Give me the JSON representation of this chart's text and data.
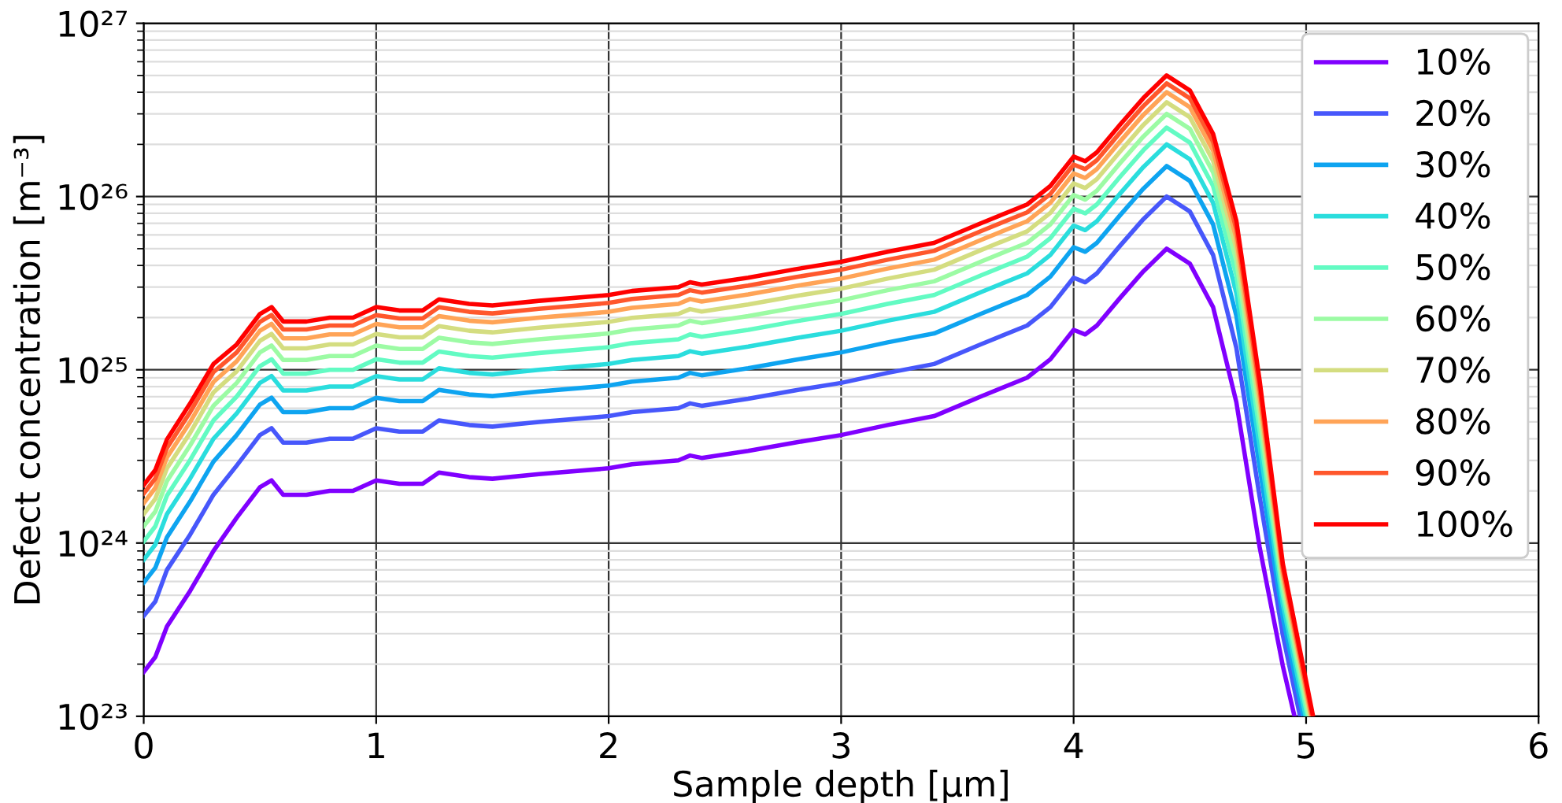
{
  "chart_data": {
    "type": "line",
    "xlabel": "Sample depth [μm]",
    "ylabel": "Defect concentration [m⁻³]",
    "log": "y",
    "grid": true,
    "legend": "top right",
    "line_style": "solid",
    "marker": "none",
    "xlim": [
      0,
      6
    ],
    "xticks": [
      0,
      1,
      2,
      3,
      4,
      5,
      6
    ],
    "ylim": [
      1e+23,
      1e+27
    ],
    "yticks": [
      {
        "value": 1e+23,
        "label": "10²³"
      },
      {
        "value": 1e+24,
        "label": "10²⁴"
      },
      {
        "value": 1e+25,
        "label": "10²⁵"
      },
      {
        "value": 1e+26,
        "label": "10²⁶"
      },
      {
        "value": 1e+27,
        "label": "10²⁷"
      }
    ],
    "series": [
      {
        "name": "10%",
        "color": "#8000ff",
        "x": [
          0,
          0.05,
          0.1,
          0.2,
          0.3,
          0.4,
          0.5,
          0.55,
          0.6,
          0.7,
          0.8,
          0.9,
          1.0,
          1.1,
          1.2,
          1.27,
          1.4,
          1.5,
          1.7,
          2.0,
          2.1,
          2.3,
          2.35,
          2.4,
          2.6,
          2.8,
          3.0,
          3.2,
          3.4,
          3.6,
          3.8,
          3.9,
          4.0,
          4.05,
          4.1,
          4.2,
          4.3,
          4.4,
          4.5,
          4.6,
          4.7,
          4.8,
          4.9,
          4.95
        ],
        "values": [
          1.8e+23,
          2.2e+23,
          3.3e+23,
          5.3e+23,
          9e+23,
          1.4e+24,
          2.1e+24,
          2.3e+24,
          1.9e+24,
          1.9e+24,
          2e+24,
          2e+24,
          2.3e+24,
          2.2e+24,
          2.2e+24,
          2.55e+24,
          2.4e+24,
          2.35e+24,
          2.5e+24,
          2.7e+24,
          2.85e+24,
          3e+24,
          3.2e+24,
          3.1e+24,
          3.4e+24,
          3.8e+24,
          4.2e+24,
          4.8e+24,
          5.4e+24,
          7e+24,
          9e+24,
          1.15e+25,
          1.7e+25,
          1.6e+25,
          1.8e+25,
          2.6e+25,
          3.7e+25,
          5e+25,
          4.1e+25,
          2.3e+25,
          6.5e+24,
          9.5e+23,
          1.95e+23,
          1e+23
        ]
      },
      {
        "name": "20%",
        "color": "#4757fb",
        "x": [
          0,
          0.05,
          0.1,
          0.2,
          0.3,
          0.4,
          0.5,
          0.55,
          0.6,
          0.7,
          0.8,
          0.9,
          1.0,
          1.1,
          1.2,
          1.27,
          1.4,
          1.5,
          1.7,
          2.0,
          2.1,
          2.3,
          2.35,
          2.4,
          2.6,
          2.8,
          3.0,
          3.2,
          3.4,
          3.6,
          3.8,
          3.9,
          4.0,
          4.05,
          4.1,
          4.2,
          4.3,
          4.4,
          4.5,
          4.6,
          4.7,
          4.8,
          4.9,
          4.974
        ],
        "values": [
          3.8e+23,
          4.6e+23,
          7e+23,
          1.12e+24,
          1.9e+24,
          2.8e+24,
          4.2e+24,
          4.6e+24,
          3.8e+24,
          3.8e+24,
          4e+24,
          4e+24,
          4.6e+24,
          4.4e+24,
          4.4e+24,
          5.1e+24,
          4.8e+24,
          4.7e+24,
          5e+24,
          5.4e+24,
          5.7e+24,
          6e+24,
          6.4e+24,
          6.2e+24,
          6.8e+24,
          7.6e+24,
          8.4e+24,
          9.6e+24,
          1.08e+25,
          1.4e+25,
          1.8e+25,
          2.3e+25,
          3.4e+25,
          3.2e+25,
          3.6e+25,
          5.2e+25,
          7.4e+25,
          1e+26,
          8.2e+25,
          4.6e+25,
          1.34e+25,
          1.86e+24,
          2.94e+23,
          1e+23
        ]
      },
      {
        "name": "30%",
        "color": "#0ea4f0",
        "x": [
          0,
          0.05,
          0.1,
          0.2,
          0.3,
          0.4,
          0.5,
          0.55,
          0.6,
          0.7,
          0.8,
          0.9,
          1.0,
          1.1,
          1.2,
          1.27,
          1.4,
          1.5,
          1.7,
          2.0,
          2.1,
          2.3,
          2.35,
          2.4,
          2.6,
          2.8,
          3.0,
          3.2,
          3.4,
          3.6,
          3.8,
          3.9,
          4.0,
          4.05,
          4.1,
          4.2,
          4.3,
          4.4,
          4.5,
          4.6,
          4.7,
          4.8,
          4.9,
          4.988
        ],
        "values": [
          5.9e+23,
          7.2e+23,
          1.08e+24,
          1.74e+24,
          2.95e+24,
          4.2e+24,
          6.3e+24,
          6.9e+24,
          5.7e+24,
          5.7e+24,
          6e+24,
          6e+24,
          6.9e+24,
          6.6e+24,
          6.6e+24,
          7.65e+24,
          7.2e+24,
          7.05e+24,
          7.5e+24,
          8.1e+24,
          8.55e+24,
          9e+24,
          9.6e+24,
          9.3e+24,
          1.02e+25,
          1.14e+25,
          1.26e+25,
          1.44e+25,
          1.62e+25,
          2.1e+25,
          2.7e+25,
          3.45e+25,
          5.1e+25,
          4.8e+25,
          5.4e+25,
          7.8e+25,
          1.11e+26,
          1.5e+26,
          1.23e+26,
          6.9e+25,
          2.05e+25,
          2.74e+24,
          3.72e+23,
          1e+23
        ]
      },
      {
        "name": "40%",
        "color": "#2adddd",
        "x": [
          0,
          0.05,
          0.1,
          0.2,
          0.3,
          0.4,
          0.5,
          0.55,
          0.6,
          0.7,
          0.8,
          0.9,
          1.0,
          1.1,
          1.2,
          1.27,
          1.4,
          1.5,
          1.7,
          2.0,
          2.1,
          2.3,
          2.35,
          2.4,
          2.6,
          2.8,
          3.0,
          3.2,
          3.4,
          3.6,
          3.8,
          3.9,
          4.0,
          4.05,
          4.1,
          4.2,
          4.3,
          4.4,
          4.5,
          4.6,
          4.7,
          4.8,
          4.9,
          4.998
        ],
        "values": [
          8e+23,
          9.8e+23,
          1.47e+24,
          2.36e+24,
          4e+24,
          5.6e+24,
          8.4e+24,
          9.2e+24,
          7.6e+24,
          7.6e+24,
          8e+24,
          8e+24,
          9.2e+24,
          8.8e+24,
          8.8e+24,
          1.02e+25,
          9.6e+24,
          9.4e+24,
          1e+25,
          1.08e+25,
          1.14e+25,
          1.2e+25,
          1.28e+25,
          1.24e+25,
          1.36e+25,
          1.52e+25,
          1.68e+25,
          1.92e+25,
          2.16e+25,
          2.8e+25,
          3.6e+25,
          4.6e+25,
          6.8e+25,
          6.4e+25,
          7.2e+25,
          1.04e+26,
          1.48e+26,
          2e+26,
          1.64e+26,
          9.2e+25,
          2.77e+25,
          3.61e+24,
          4.42e+23,
          1e+23
        ]
      },
      {
        "name": "50%",
        "color": "#63fbc3",
        "x": [
          0,
          0.05,
          0.1,
          0.2,
          0.3,
          0.4,
          0.5,
          0.55,
          0.6,
          0.7,
          0.8,
          0.9,
          1.0,
          1.1,
          1.2,
          1.27,
          1.4,
          1.5,
          1.7,
          2.0,
          2.1,
          2.3,
          2.35,
          2.4,
          2.6,
          2.8,
          3.0,
          3.2,
          3.4,
          3.6,
          3.8,
          3.9,
          4.0,
          4.05,
          4.1,
          4.2,
          4.3,
          4.4,
          4.5,
          4.6,
          4.7,
          4.8,
          4.9,
          5.006
        ],
        "values": [
          1.02e+24,
          1.25e+24,
          1.88e+24,
          3.02e+24,
          5.1e+24,
          7e+24,
          1.05e+25,
          1.15e+25,
          9.5e+24,
          9.5e+24,
          1e+25,
          1e+25,
          1.15e+25,
          1.1e+25,
          1.1e+25,
          1.275e+25,
          1.2e+25,
          1.175e+25,
          1.25e+25,
          1.35e+25,
          1.425e+25,
          1.5e+25,
          1.6e+25,
          1.55e+25,
          1.7e+25,
          1.9e+25,
          2.1e+25,
          2.4e+25,
          2.7e+25,
          3.5e+25,
          4.5e+25,
          5.75e+25,
          8.5e+25,
          8e+25,
          9e+25,
          1.3e+26,
          1.85e+26,
          2.5e+26,
          2.05e+26,
          1.15e+26,
          3.5e+25,
          4.48e+24,
          5.04e+23,
          1e+23
        ]
      },
      {
        "name": "60%",
        "color": "#9cfba4",
        "x": [
          0,
          0.05,
          0.1,
          0.2,
          0.3,
          0.4,
          0.5,
          0.55,
          0.6,
          0.7,
          0.8,
          0.9,
          1.0,
          1.1,
          1.2,
          1.27,
          1.4,
          1.5,
          1.7,
          2.0,
          2.1,
          2.3,
          2.35,
          2.4,
          2.6,
          2.8,
          3.0,
          3.2,
          3.4,
          3.6,
          3.8,
          3.9,
          4.0,
          4.05,
          4.1,
          4.2,
          4.3,
          4.4,
          4.5,
          4.6,
          4.7,
          4.8,
          4.9,
          5.012
        ],
        "values": [
          1.25e+24,
          1.52e+24,
          2.28e+24,
          3.67e+24,
          6.2e+24,
          8.4e+24,
          1.26e+25,
          1.38e+25,
          1.14e+25,
          1.14e+25,
          1.2e+25,
          1.2e+25,
          1.38e+25,
          1.32e+25,
          1.32e+25,
          1.53e+25,
          1.44e+25,
          1.41e+25,
          1.5e+25,
          1.62e+25,
          1.71e+25,
          1.8e+25,
          1.92e+25,
          1.86e+25,
          2.04e+25,
          2.28e+25,
          2.52e+25,
          2.88e+25,
          3.24e+25,
          4.2e+25,
          5.4e+25,
          6.9e+25,
          1.02e+26,
          9.6e+25,
          1.08e+26,
          1.56e+26,
          2.22e+26,
          3e+26,
          2.46e+26,
          1.38e+26,
          4.24e+25,
          5.33e+24,
          5.61e+23,
          1e+23
        ]
      },
      {
        "name": "70%",
        "color": "#d4dd80",
        "x": [
          0,
          0.05,
          0.1,
          0.2,
          0.3,
          0.4,
          0.5,
          0.55,
          0.6,
          0.7,
          0.8,
          0.9,
          1.0,
          1.1,
          1.2,
          1.27,
          1.4,
          1.5,
          1.7,
          2.0,
          2.1,
          2.3,
          2.35,
          2.4,
          2.6,
          2.8,
          3.0,
          3.2,
          3.4,
          3.6,
          3.8,
          3.9,
          4.0,
          4.05,
          4.1,
          4.2,
          4.3,
          4.4,
          4.5,
          4.6,
          4.7,
          4.8,
          4.9,
          5.018
        ],
        "values": [
          1.47e+24,
          1.8e+24,
          2.7e+24,
          4.33e+24,
          7.4e+24,
          9.8e+24,
          1.47e+25,
          1.61e+25,
          1.33e+25,
          1.33e+25,
          1.4e+25,
          1.4e+25,
          1.61e+25,
          1.54e+25,
          1.54e+25,
          1.785e+25,
          1.68e+25,
          1.645e+25,
          1.75e+25,
          1.89e+25,
          1.995e+25,
          2.1e+25,
          2.24e+25,
          2.17e+25,
          2.38e+25,
          2.66e+25,
          2.94e+25,
          3.36e+25,
          3.78e+25,
          4.9e+25,
          6.3e+25,
          8.05e+25,
          1.19e+26,
          1.12e+26,
          1.26e+26,
          1.82e+26,
          2.59e+26,
          3.5e+26,
          2.87e+26,
          1.61e+26,
          4.98e+25,
          6.18e+24,
          6.15e+23,
          1e+23
        ]
      },
      {
        "name": "80%",
        "color": "#ffa457",
        "x": [
          0,
          0.05,
          0.1,
          0.2,
          0.3,
          0.4,
          0.5,
          0.55,
          0.6,
          0.7,
          0.8,
          0.9,
          1.0,
          1.1,
          1.2,
          1.27,
          1.4,
          1.5,
          1.7,
          2.0,
          2.1,
          2.3,
          2.35,
          2.4,
          2.6,
          2.8,
          3.0,
          3.2,
          3.4,
          3.6,
          3.8,
          3.9,
          4.0,
          4.05,
          4.1,
          4.2,
          4.3,
          4.4,
          4.5,
          4.6,
          4.7,
          4.8,
          4.9,
          5.022
        ],
        "values": [
          1.7e+24,
          2.08e+24,
          3.12e+24,
          5e+24,
          8.5e+24,
          1.12e+25,
          1.68e+25,
          1.84e+25,
          1.52e+25,
          1.52e+25,
          1.6e+25,
          1.6e+25,
          1.84e+25,
          1.76e+25,
          1.76e+25,
          2.04e+25,
          1.92e+25,
          1.88e+25,
          2e+25,
          2.16e+25,
          2.28e+25,
          2.4e+25,
          2.56e+25,
          2.48e+25,
          2.72e+25,
          3.04e+25,
          3.36e+25,
          3.84e+25,
          4.32e+25,
          5.6e+25,
          7.2e+25,
          9.2e+25,
          1.36e+26,
          1.28e+26,
          1.44e+26,
          2.08e+26,
          2.96e+26,
          4e+26,
          3.28e+26,
          1.84e+26,
          5.73e+25,
          7.03e+24,
          6.65e+23,
          1e+23
        ]
      },
      {
        "name": "90%",
        "color": "#ff572c",
        "x": [
          0,
          0.05,
          0.1,
          0.2,
          0.3,
          0.4,
          0.5,
          0.55,
          0.6,
          0.7,
          0.8,
          0.9,
          1.0,
          1.1,
          1.2,
          1.27,
          1.4,
          1.5,
          1.7,
          2.0,
          2.1,
          2.3,
          2.35,
          2.4,
          2.6,
          2.8,
          3.0,
          3.2,
          3.4,
          3.6,
          3.8,
          3.9,
          4.0,
          4.05,
          4.1,
          4.2,
          4.3,
          4.4,
          4.5,
          4.6,
          4.7,
          4.8,
          4.9,
          5.026
        ],
        "values": [
          1.93e+24,
          2.36e+24,
          3.54e+24,
          5.7e+24,
          9.7e+24,
          1.26e+25,
          1.89e+25,
          2.07e+25,
          1.71e+25,
          1.71e+25,
          1.8e+25,
          1.8e+25,
          2.07e+25,
          1.98e+25,
          1.98e+25,
          2.295e+25,
          2.16e+25,
          2.115e+25,
          2.25e+25,
          2.43e+25,
          2.565e+25,
          2.7e+25,
          2.88e+25,
          2.79e+25,
          3.06e+25,
          3.42e+25,
          3.78e+25,
          4.32e+25,
          4.86e+25,
          6.3e+25,
          8.1e+25,
          1.035e+26,
          1.53e+26,
          1.44e+26,
          1.62e+26,
          2.34e+26,
          3.33e+26,
          4.5e+26,
          3.69e+26,
          2.07e+26,
          6.49e+25,
          7.87e+24,
          7.13e+23,
          1e+23
        ]
      },
      {
        "name": "100%",
        "color": "#ff0000",
        "x": [
          0,
          0.05,
          0.1,
          0.2,
          0.3,
          0.4,
          0.5,
          0.55,
          0.6,
          0.7,
          0.8,
          0.9,
          1.0,
          1.1,
          1.2,
          1.27,
          1.4,
          1.5,
          1.7,
          2.0,
          2.1,
          2.3,
          2.35,
          2.4,
          2.6,
          2.8,
          3.0,
          3.2,
          3.4,
          3.6,
          3.8,
          3.9,
          4.0,
          4.05,
          4.1,
          4.2,
          4.3,
          4.4,
          4.5,
          4.6,
          4.7,
          4.8,
          4.9,
          5.03
        ],
        "values": [
          2.16e+24,
          2.64e+24,
          3.96e+24,
          6.4e+24,
          1.08e+25,
          1.4e+25,
          2.1e+25,
          2.3e+25,
          1.9e+25,
          1.9e+25,
          2e+25,
          2e+25,
          2.3e+25,
          2.2e+25,
          2.2e+25,
          2.55e+25,
          2.4e+25,
          2.35e+25,
          2.5e+25,
          2.7e+25,
          2.85e+25,
          3e+25,
          3.2e+25,
          3.1e+25,
          3.4e+25,
          3.8e+25,
          4.2e+25,
          4.8e+25,
          5.4e+25,
          7e+25,
          9e+25,
          1.15e+26,
          1.7e+26,
          1.6e+26,
          1.8e+26,
          2.6e+26,
          3.7e+26,
          5e+26,
          4.1e+26,
          2.3e+26,
          7.24e+25,
          8.71e+24,
          7.59e+23,
          1e+23
        ]
      }
    ]
  }
}
